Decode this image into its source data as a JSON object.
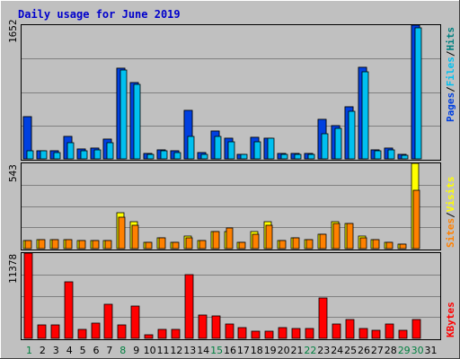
{
  "title": "Daily usage for June 2019",
  "colors": {
    "background": "#c0c0c0",
    "plot_bg": "#c0c0c0",
    "grid": "#808080",
    "pages": "#0040e0",
    "files": "#00c0f0",
    "hits": "#008080",
    "visits": "#ffff00",
    "sites": "#ff8000",
    "kbytes": "#ff0000",
    "weekend_day": "#008040",
    "weekday_day": "#000000"
  },
  "panels": {
    "top": {
      "max_label": "1652",
      "legend": [
        "Pages",
        "Files",
        "Hits"
      ],
      "sep": "/"
    },
    "middle": {
      "max_label": "543",
      "legend": [
        "Sites",
        "Visits"
      ],
      "sep": "/"
    },
    "bottom": {
      "max_label": "11378",
      "legend": [
        "KBytes"
      ]
    }
  },
  "chart_data": {
    "type": "bar",
    "title": "Daily usage for June 2019",
    "categories": [
      "1",
      "2",
      "3",
      "4",
      "5",
      "6",
      "7",
      "8",
      "9",
      "10",
      "11",
      "12",
      "13",
      "14",
      "15",
      "16",
      "17",
      "18",
      "19",
      "20",
      "21",
      "22",
      "23",
      "24",
      "25",
      "26",
      "27",
      "28",
      "29",
      "30",
      "31"
    ],
    "weekend_days": [
      1,
      8,
      15,
      22,
      29,
      30
    ],
    "panels": [
      {
        "name": "top",
        "ylim": [
          0,
          1652
        ],
        "series": [
          {
            "name": "Hits",
            "values": [
              520,
              100,
              100,
              280,
              120,
              130,
              240,
              1120,
              940,
              70,
              110,
              100,
              600,
              80,
              340,
              250,
              60,
              270,
              250,
              70,
              70,
              70,
              490,
              410,
              640,
              1130,
              110,
              130,
              50,
              1652,
              0
            ]
          },
          {
            "name": "Pages",
            "values": [
              520,
              100,
              100,
              280,
              120,
              130,
              240,
              1120,
              940,
              70,
              110,
              100,
              600,
              80,
              340,
              250,
              60,
              270,
              250,
              70,
              70,
              70,
              490,
              410,
              640,
              1130,
              110,
              130,
              50,
              1652,
              0
            ]
          },
          {
            "name": "Files",
            "values": [
              100,
              100,
              80,
              200,
              100,
              110,
              200,
              1100,
              920,
              60,
              100,
              80,
              280,
              60,
              280,
              210,
              50,
              210,
              250,
              50,
              60,
              60,
              310,
              380,
              590,
              1070,
              100,
              110,
              40,
              1620,
              0
            ]
          }
        ]
      },
      {
        "name": "middle",
        "ylim": [
          0,
          543
        ],
        "series": [
          {
            "name": "Visits",
            "values": [
              50,
              60,
              60,
              60,
              50,
              50,
              50,
              230,
              170,
              40,
              70,
              40,
              80,
              50,
              110,
              110,
              40,
              110,
              170,
              50,
              70,
              60,
              90,
              170,
              160,
              80,
              60,
              40,
              30,
              543,
              0
            ]
          },
          {
            "name": "Sites",
            "values": [
              50,
              60,
              60,
              60,
              50,
              50,
              50,
              200,
              150,
              40,
              70,
              40,
              70,
              50,
              110,
              130,
              40,
              90,
              150,
              50,
              70,
              60,
              90,
              160,
              160,
              70,
              60,
              40,
              30,
              370,
              0
            ]
          }
        ]
      },
      {
        "name": "bottom",
        "ylim": [
          0,
          11378
        ],
        "series": [
          {
            "name": "KBytes",
            "values": [
              11378,
              1850,
              1850,
              7600,
              1220,
              2050,
              4500,
              1850,
              4300,
              500,
              1150,
              1150,
              8500,
              3100,
              3050,
              1950,
              1420,
              900,
              900,
              1400,
              1300,
              1300,
              5400,
              1950,
              2500,
              1300,
              1100,
              1950,
              1100,
              2500,
              0
            ]
          }
        ]
      }
    ]
  }
}
